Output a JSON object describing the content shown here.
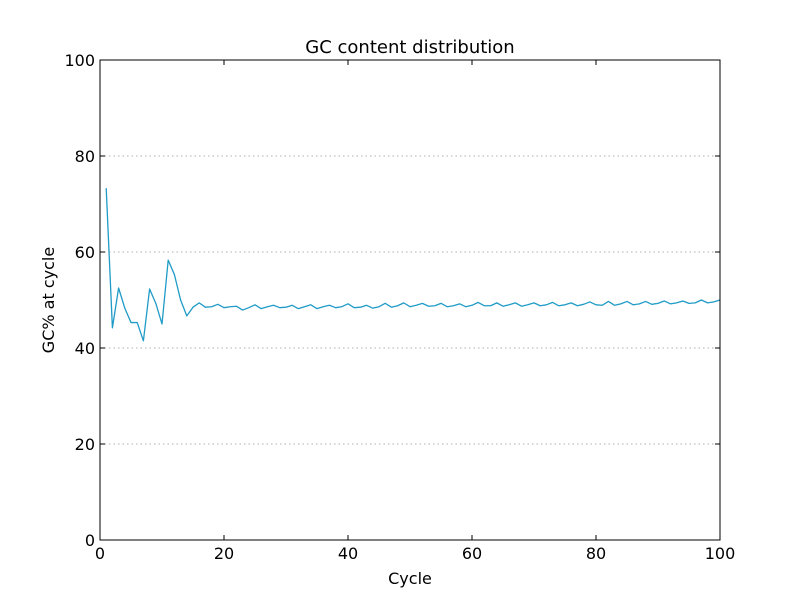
{
  "chart_data": {
    "type": "line",
    "title": "GC content distribution",
    "xlabel": "Cycle",
    "ylabel": "GC% at cycle",
    "xlim": [
      0,
      100
    ],
    "ylim": [
      0,
      100
    ],
    "xticks": [
      0,
      20,
      40,
      60,
      80,
      100
    ],
    "yticks": [
      0,
      20,
      40,
      60,
      80,
      100
    ],
    "grid": "horizontal-dotted",
    "series": [
      {
        "color": "#1f9bc7",
        "x": [
          1,
          2,
          3,
          4,
          5,
          6,
          7,
          8,
          9,
          10,
          11,
          12,
          13,
          14,
          15,
          16,
          17,
          18,
          19,
          20,
          21,
          22,
          23,
          24,
          25,
          26,
          27,
          28,
          29,
          30,
          31,
          32,
          33,
          34,
          35,
          36,
          37,
          38,
          39,
          40,
          41,
          42,
          43,
          44,
          45,
          46,
          47,
          48,
          49,
          50,
          51,
          52,
          53,
          54,
          55,
          56,
          57,
          58,
          59,
          60,
          61,
          62,
          63,
          64,
          65,
          66,
          67,
          68,
          69,
          70,
          71,
          72,
          73,
          74,
          75,
          76,
          77,
          78,
          79,
          80,
          81,
          82,
          83,
          84,
          85,
          86,
          87,
          88,
          89,
          90,
          91,
          92,
          93,
          94,
          95,
          96,
          97,
          98,
          99,
          100
        ],
        "y": [
          73.3,
          44.2,
          52.5,
          48.3,
          45.3,
          45.3,
          41.5,
          52.3,
          49.3,
          45.0,
          58.3,
          55.3,
          50.0,
          46.7,
          48.5,
          49.4,
          48.5,
          48.6,
          49.1,
          48.4,
          48.6,
          48.7,
          47.9,
          48.4,
          49.0,
          48.2,
          48.6,
          48.9,
          48.4,
          48.5,
          48.9,
          48.2,
          48.6,
          49.0,
          48.2,
          48.6,
          48.9,
          48.4,
          48.6,
          49.2,
          48.4,
          48.5,
          48.9,
          48.3,
          48.6,
          49.3,
          48.5,
          48.8,
          49.4,
          48.6,
          48.9,
          49.3,
          48.7,
          48.8,
          49.3,
          48.6,
          48.8,
          49.2,
          48.6,
          48.9,
          49.5,
          48.8,
          48.8,
          49.4,
          48.7,
          49.0,
          49.4,
          48.7,
          49.0,
          49.4,
          48.8,
          49.0,
          49.5,
          48.8,
          49.0,
          49.4,
          48.8,
          49.1,
          49.6,
          49.0,
          48.9,
          49.7,
          48.9,
          49.2,
          49.7,
          49.0,
          49.2,
          49.7,
          49.1,
          49.3,
          49.8,
          49.2,
          49.4,
          49.8,
          49.3,
          49.4,
          50.0,
          49.4,
          49.6,
          50.0
        ]
      }
    ]
  }
}
